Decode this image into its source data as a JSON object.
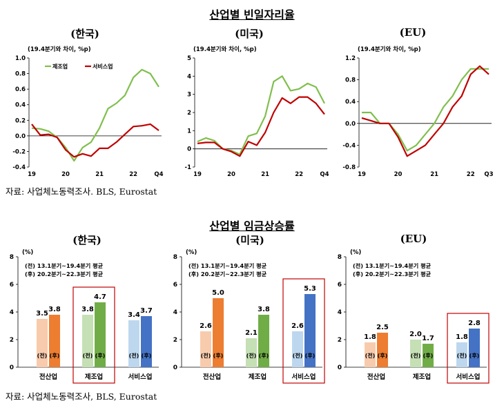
{
  "section1": {
    "title": "산업별 빈일자리율",
    "source": "자료: 사업체노동력조사. BLS, Eurostat"
  },
  "section2": {
    "title": "산업별 임금상승률",
    "source": "자료: 사업체노동력조사, BLS, Eurostat"
  },
  "colors": {
    "green": "#7fbf4d",
    "red": "#c00000"
  },
  "chart_data": [
    {
      "type": "line",
      "title": "(한국)",
      "unit": "(19.4분기와 차이, %p)",
      "ylim": [
        -0.4,
        1.0
      ],
      "yticks": [
        "-0.4",
        "-0.2",
        "0.0",
        "0.2",
        "0.4",
        "0.6",
        "0.8",
        "1.0"
      ],
      "yvals": [
        -0.4,
        -0.2,
        0,
        0.2,
        0.4,
        0.6,
        0.8,
        1.0
      ],
      "xticks": [
        {
          "label": "19",
          "i": 0
        },
        {
          "label": "20",
          "i": 4
        },
        {
          "label": "21",
          "i": 8
        },
        {
          "label": "22",
          "i": 12
        },
        {
          "label": "Q4",
          "i": 15
        }
      ],
      "npoints": 16,
      "series": [
        {
          "name": "제조업",
          "color": "#7fbf4d",
          "values": [
            0.1,
            0.09,
            0.06,
            -0.02,
            -0.15,
            -0.32,
            -0.15,
            -0.08,
            0.1,
            0.35,
            0.42,
            0.52,
            0.75,
            0.85,
            0.8,
            0.63
          ]
        },
        {
          "name": "서비스업",
          "color": "#c00000",
          "values": [
            0.15,
            0.01,
            0.02,
            -0.02,
            -0.18,
            -0.27,
            -0.23,
            -0.26,
            -0.16,
            -0.16,
            -0.08,
            0.02,
            0.12,
            0.13,
            0.15,
            0.07
          ]
        }
      ],
      "legend": "top-left"
    },
    {
      "type": "line",
      "title": "(미국)",
      "unit": "(19.4분기와 차이, %p)",
      "ylim": [
        -1,
        5
      ],
      "yticks": [
        "-1",
        "0",
        "1",
        "2",
        "3",
        "4",
        "5"
      ],
      "yvals": [
        -1,
        0,
        1,
        2,
        3,
        4,
        5
      ],
      "xticks": [
        {
          "label": "19",
          "i": 0
        },
        {
          "label": "20",
          "i": 4
        },
        {
          "label": "21",
          "i": 8
        },
        {
          "label": "22",
          "i": 12
        },
        {
          "label": "Q4",
          "i": 15
        }
      ],
      "npoints": 16,
      "series": [
        {
          "name": "제조업",
          "color": "#7fbf4d",
          "values": [
            0.4,
            0.6,
            0.45,
            0.0,
            -0.1,
            -0.3,
            0.7,
            0.85,
            1.8,
            3.7,
            4.0,
            3.2,
            3.3,
            3.6,
            3.4,
            2.5
          ]
        },
        {
          "name": "서비스업",
          "color": "#c00000",
          "values": [
            0.3,
            0.35,
            0.35,
            0.0,
            -0.15,
            -0.4,
            0.4,
            0.2,
            0.9,
            2.0,
            2.8,
            2.5,
            2.85,
            2.85,
            2.5,
            1.9
          ]
        }
      ],
      "legend": "none"
    },
    {
      "type": "line",
      "title": "(EU)",
      "unit": "(19.4분기와 차이, %p)",
      "ylim": [
        -0.8,
        1.2
      ],
      "yticks": [
        "-0.8",
        "-0.4",
        "0.0",
        "0.4",
        "0.8",
        "1.2"
      ],
      "yvals": [
        -0.8,
        -0.4,
        0,
        0.4,
        0.8,
        1.2
      ],
      "xticks": [
        {
          "label": "19",
          "i": 0
        },
        {
          "label": "20",
          "i": 4
        },
        {
          "label": "21",
          "i": 8
        },
        {
          "label": "22",
          "i": 12
        },
        {
          "label": "Q3",
          "i": 14
        }
      ],
      "npoints": 15,
      "series": [
        {
          "name": "제조업",
          "color": "#7fbf4d",
          "values": [
            0.2,
            0.2,
            0.0,
            0.0,
            -0.2,
            -0.5,
            -0.4,
            -0.2,
            0.0,
            0.3,
            0.5,
            0.8,
            1.0,
            1.0,
            1.0
          ]
        },
        {
          "name": "서비스업",
          "color": "#c00000",
          "values": [
            0.1,
            0.05,
            0.0,
            0.0,
            -0.25,
            -0.6,
            -0.5,
            -0.4,
            -0.2,
            0.0,
            0.3,
            0.5,
            0.9,
            1.05,
            0.9
          ]
        }
      ],
      "legend": "none"
    },
    {
      "type": "bar",
      "title": "(한국)",
      "unit": "(%)",
      "ylim": [
        0,
        8
      ],
      "yticks": [
        "0",
        "2",
        "4",
        "6",
        "8"
      ],
      "notes": [
        "(전) 13.1분기~19.4분기 평균",
        "(후) 20.2분기~22.3분기 평균"
      ],
      "groups": [
        {
          "label": "전산업",
          "before": 3.5,
          "after": 3.8,
          "before_color": "#f8cbad",
          "after_color": "#ed7d31",
          "highlight": false
        },
        {
          "label": "제조업",
          "before": 3.8,
          "after": 4.7,
          "before_color": "#c5e0b4",
          "after_color": "#70ad47",
          "highlight": true
        },
        {
          "label": "서비스업",
          "before": 3.4,
          "after": 3.7,
          "before_color": "#bdd7ee",
          "after_color": "#4472c4",
          "highlight": false
        }
      ],
      "bar_tags": {
        "before": "(전)",
        "after": "(후)"
      },
      "value_labels": [
        [
          "3.5",
          "3.8"
        ],
        [
          "3.8",
          "4.7"
        ],
        [
          "3.4",
          "3.7"
        ]
      ]
    },
    {
      "type": "bar",
      "title": "(미국)",
      "unit": "(%)",
      "ylim": [
        0,
        8
      ],
      "yticks": [
        "0",
        "2",
        "4",
        "6",
        "8"
      ],
      "notes": [
        "(전) 13.1분기~19.4분기 평균",
        "(후) 20.2분기~22.3분기 평균"
      ],
      "groups": [
        {
          "label": "전산업",
          "before": 2.6,
          "after": 5.0,
          "before_color": "#f8cbad",
          "after_color": "#ed7d31",
          "highlight": false
        },
        {
          "label": "제조업",
          "before": 2.1,
          "after": 3.8,
          "before_color": "#c5e0b4",
          "after_color": "#70ad47",
          "highlight": false
        },
        {
          "label": "서비스업",
          "before": 2.6,
          "after": 5.3,
          "before_color": "#bdd7ee",
          "after_color": "#4472c4",
          "highlight": true
        }
      ],
      "bar_tags": {
        "before": "(전)",
        "after": "(후)"
      },
      "value_labels": [
        [
          "2.6",
          "5.0"
        ],
        [
          "2.1",
          "3.8"
        ],
        [
          "2.6",
          "5.3"
        ]
      ]
    },
    {
      "type": "bar",
      "title": "(EU)",
      "unit": "(%)",
      "ylim": [
        0,
        8
      ],
      "yticks": [
        "0",
        "2",
        "4",
        "6",
        "8"
      ],
      "notes": [
        "(전) 13.1분기~19.4분기 평균",
        "(후) 20.2분기~22.3분기 평균"
      ],
      "groups": [
        {
          "label": "전산업",
          "before": 1.8,
          "after": 2.5,
          "before_color": "#f8cbad",
          "after_color": "#ed7d31",
          "highlight": false
        },
        {
          "label": "제조업",
          "before": 2.0,
          "after": 1.7,
          "before_color": "#c5e0b4",
          "after_color": "#70ad47",
          "highlight": false
        },
        {
          "label": "서비스업",
          "before": 1.8,
          "after": 2.8,
          "before_color": "#bdd7ee",
          "after_color": "#4472c4",
          "highlight": true
        }
      ],
      "bar_tags": {
        "before": "(전)",
        "after": "(후)"
      },
      "value_labels": [
        [
          "1.8",
          "2.5"
        ],
        [
          "2.0",
          "1.7"
        ],
        [
          "1.8",
          "2.8"
        ]
      ]
    }
  ]
}
